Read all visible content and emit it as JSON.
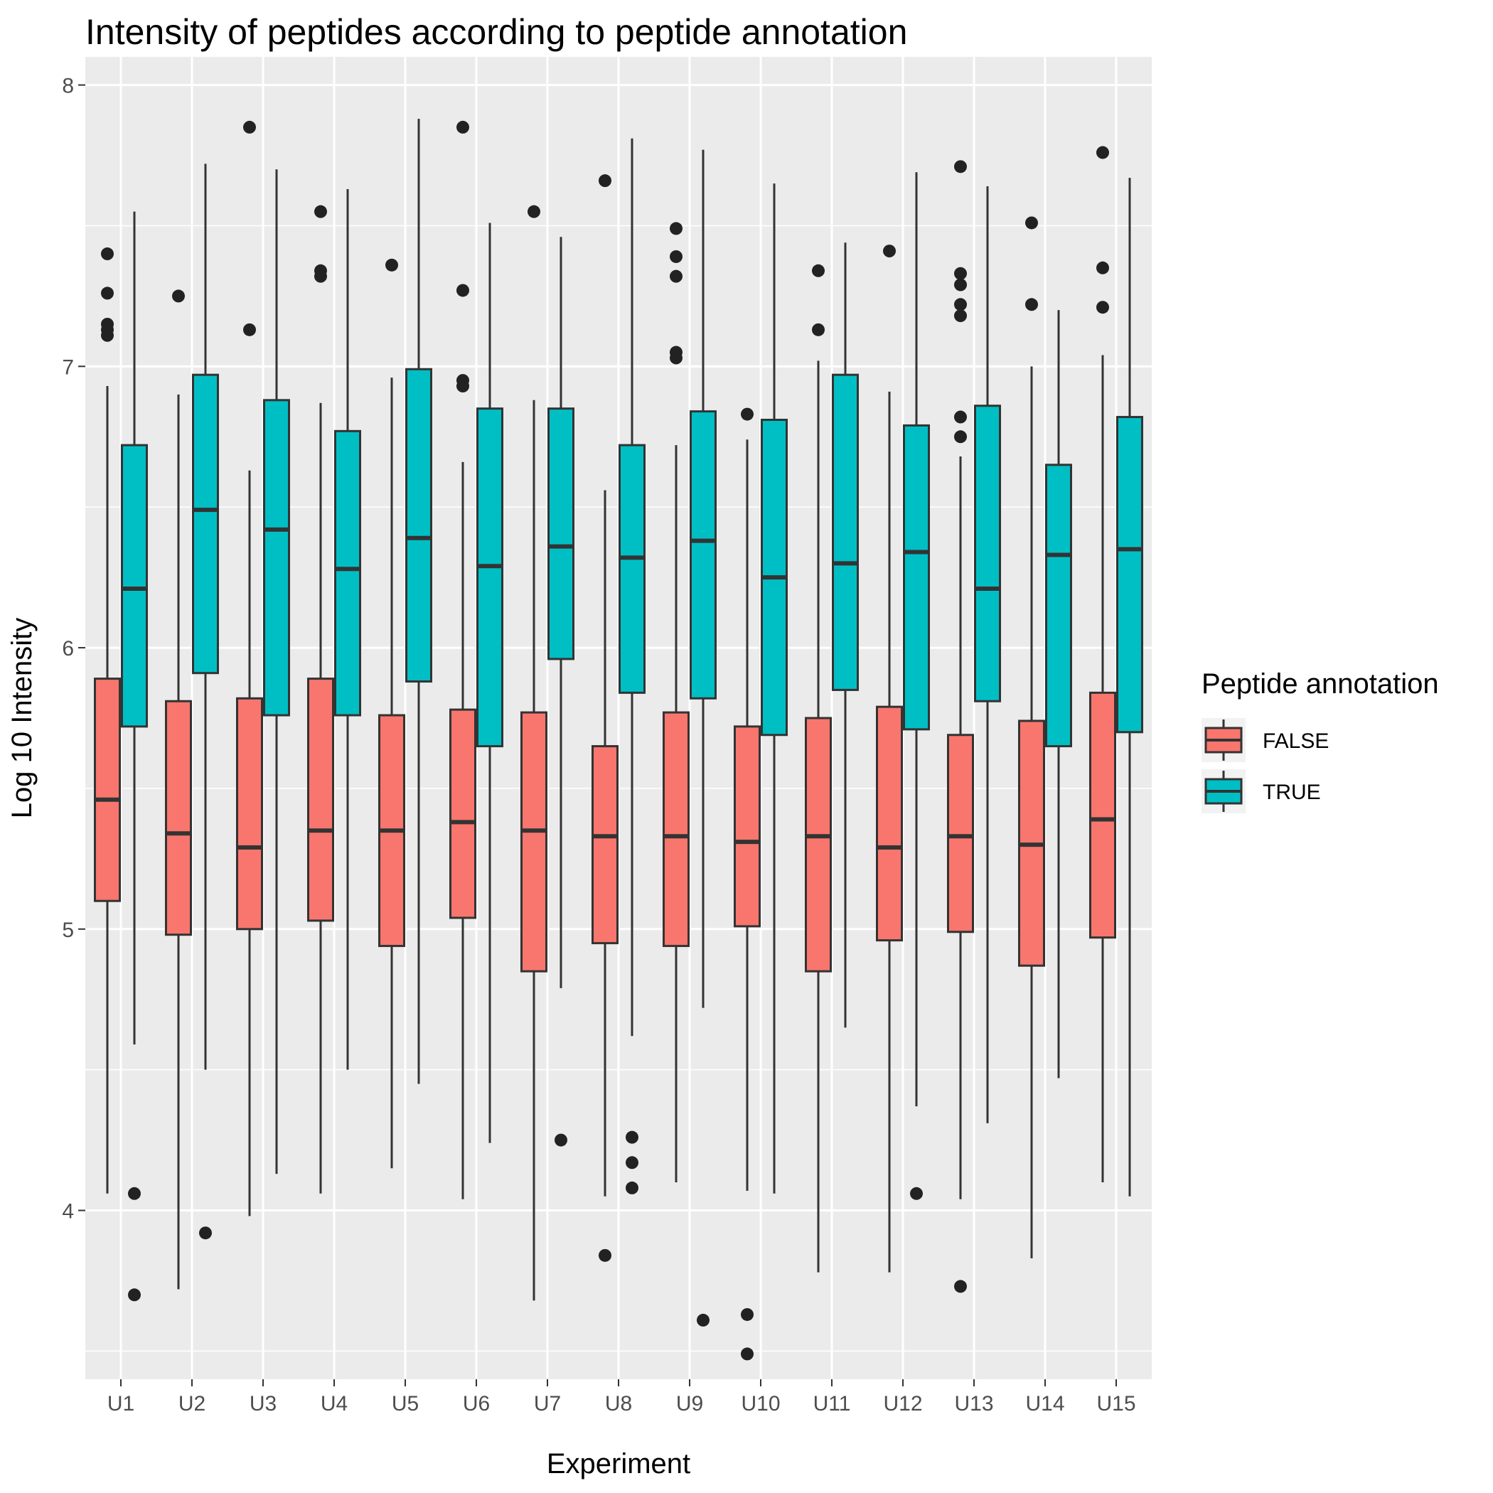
{
  "chart_data": {
    "type": "boxplot",
    "title": "Intensity of peptides according to peptide annotation",
    "xlabel": "Experiment",
    "ylabel": "Log 10 Intensity",
    "ylim": [
      3.4,
      8.1
    ],
    "yticks": [
      4,
      5,
      6,
      7,
      8
    ],
    "grid": true,
    "legend": {
      "title": "Peptide annotation",
      "position": "right",
      "entries": [
        "FALSE",
        "TRUE"
      ]
    },
    "colors": {
      "FALSE": "#F8766D",
      "TRUE": "#00BFC4",
      "panel": "#EBEBEB",
      "grid": "#FFFFFF",
      "outline": "#333333"
    },
    "categories": [
      "U1",
      "U2",
      "U3",
      "U4",
      "U5",
      "U6",
      "U7",
      "U8",
      "U9",
      "U10",
      "U11",
      "U12",
      "U13",
      "U14",
      "U15"
    ],
    "series": [
      {
        "name": "FALSE",
        "boxes": [
          {
            "lower": 4.06,
            "q1": 5.1,
            "median": 5.46,
            "q3": 5.89,
            "upper": 6.93,
            "outliers": [
              7.11,
              7.13,
              7.15,
              7.26,
              7.4
            ]
          },
          {
            "lower": 3.72,
            "q1": 4.98,
            "median": 5.34,
            "q3": 5.81,
            "upper": 6.9,
            "outliers": [
              7.25
            ]
          },
          {
            "lower": 3.98,
            "q1": 5.0,
            "median": 5.29,
            "q3": 5.82,
            "upper": 6.63,
            "outliers": [
              7.13,
              7.85
            ]
          },
          {
            "lower": 4.06,
            "q1": 5.03,
            "median": 5.35,
            "q3": 5.89,
            "upper": 6.87,
            "outliers": [
              7.32,
              7.34,
              7.55
            ]
          },
          {
            "lower": 4.15,
            "q1": 4.94,
            "median": 5.35,
            "q3": 5.76,
            "upper": 6.96,
            "outliers": [
              7.36
            ]
          },
          {
            "lower": 4.04,
            "q1": 5.04,
            "median": 5.38,
            "q3": 5.78,
            "upper": 6.66,
            "outliers": [
              6.93,
              6.95,
              7.27,
              7.85
            ]
          },
          {
            "lower": 3.68,
            "q1": 4.85,
            "median": 5.35,
            "q3": 5.77,
            "upper": 6.88,
            "outliers": [
              7.55
            ]
          },
          {
            "lower": 4.05,
            "q1": 4.95,
            "median": 5.33,
            "q3": 5.65,
            "upper": 6.56,
            "outliers": [
              3.84,
              7.66
            ]
          },
          {
            "lower": 4.1,
            "q1": 4.94,
            "median": 5.33,
            "q3": 5.77,
            "upper": 6.72,
            "outliers": [
              7.03,
              7.05,
              7.32,
              7.39,
              7.49
            ]
          },
          {
            "lower": 4.07,
            "q1": 5.01,
            "median": 5.31,
            "q3": 5.72,
            "upper": 6.74,
            "outliers": [
              3.49,
              3.63,
              6.83
            ]
          },
          {
            "lower": 3.78,
            "q1": 4.85,
            "median": 5.33,
            "q3": 5.75,
            "upper": 7.02,
            "outliers": [
              7.13,
              7.34
            ]
          },
          {
            "lower": 3.78,
            "q1": 4.96,
            "median": 5.29,
            "q3": 5.79,
            "upper": 6.91,
            "outliers": [
              7.41
            ]
          },
          {
            "lower": 4.04,
            "q1": 4.99,
            "median": 5.33,
            "q3": 5.69,
            "upper": 6.68,
            "outliers": [
              3.73,
              6.75,
              6.82,
              7.18,
              7.22,
              7.29,
              7.33,
              7.71
            ]
          },
          {
            "lower": 3.83,
            "q1": 4.87,
            "median": 5.3,
            "q3": 5.74,
            "upper": 7.0,
            "outliers": [
              7.22,
              7.51
            ]
          },
          {
            "lower": 4.1,
            "q1": 4.97,
            "median": 5.39,
            "q3": 5.84,
            "upper": 7.04,
            "outliers": [
              7.21,
              7.35,
              7.76
            ]
          }
        ]
      },
      {
        "name": "TRUE",
        "boxes": [
          {
            "lower": 4.59,
            "q1": 5.72,
            "median": 6.21,
            "q3": 6.72,
            "upper": 7.55,
            "outliers": [
              3.7,
              4.06
            ]
          },
          {
            "lower": 4.5,
            "q1": 5.91,
            "median": 6.49,
            "q3": 6.97,
            "upper": 7.72,
            "outliers": [
              3.92
            ]
          },
          {
            "lower": 4.13,
            "q1": 5.76,
            "median": 6.42,
            "q3": 6.88,
            "upper": 7.7,
            "outliers": []
          },
          {
            "lower": 4.5,
            "q1": 5.76,
            "median": 6.28,
            "q3": 6.77,
            "upper": 7.63,
            "outliers": []
          },
          {
            "lower": 4.45,
            "q1": 5.88,
            "median": 6.39,
            "q3": 6.99,
            "upper": 7.88,
            "outliers": []
          },
          {
            "lower": 4.24,
            "q1": 5.65,
            "median": 6.29,
            "q3": 6.85,
            "upper": 7.51,
            "outliers": []
          },
          {
            "lower": 4.79,
            "q1": 5.96,
            "median": 6.36,
            "q3": 6.85,
            "upper": 7.46,
            "outliers": [
              4.25
            ]
          },
          {
            "lower": 4.62,
            "q1": 5.84,
            "median": 6.32,
            "q3": 6.72,
            "upper": 7.81,
            "outliers": [
              4.08,
              4.17,
              4.26
            ]
          },
          {
            "lower": 4.72,
            "q1": 5.82,
            "median": 6.38,
            "q3": 6.84,
            "upper": 7.77,
            "outliers": [
              3.61
            ]
          },
          {
            "lower": 4.06,
            "q1": 5.69,
            "median": 6.25,
            "q3": 6.81,
            "upper": 7.65,
            "outliers": []
          },
          {
            "lower": 4.65,
            "q1": 5.85,
            "median": 6.3,
            "q3": 6.97,
            "upper": 7.44,
            "outliers": []
          },
          {
            "lower": 4.37,
            "q1": 5.71,
            "median": 6.34,
            "q3": 6.79,
            "upper": 7.69,
            "outliers": [
              4.06
            ]
          },
          {
            "lower": 4.31,
            "q1": 5.81,
            "median": 6.21,
            "q3": 6.86,
            "upper": 7.64,
            "outliers": []
          },
          {
            "lower": 4.47,
            "q1": 5.65,
            "median": 6.33,
            "q3": 6.65,
            "upper": 7.2,
            "outliers": []
          },
          {
            "lower": 4.05,
            "q1": 5.7,
            "median": 6.35,
            "q3": 6.82,
            "upper": 7.67,
            "outliers": []
          }
        ]
      }
    ]
  }
}
